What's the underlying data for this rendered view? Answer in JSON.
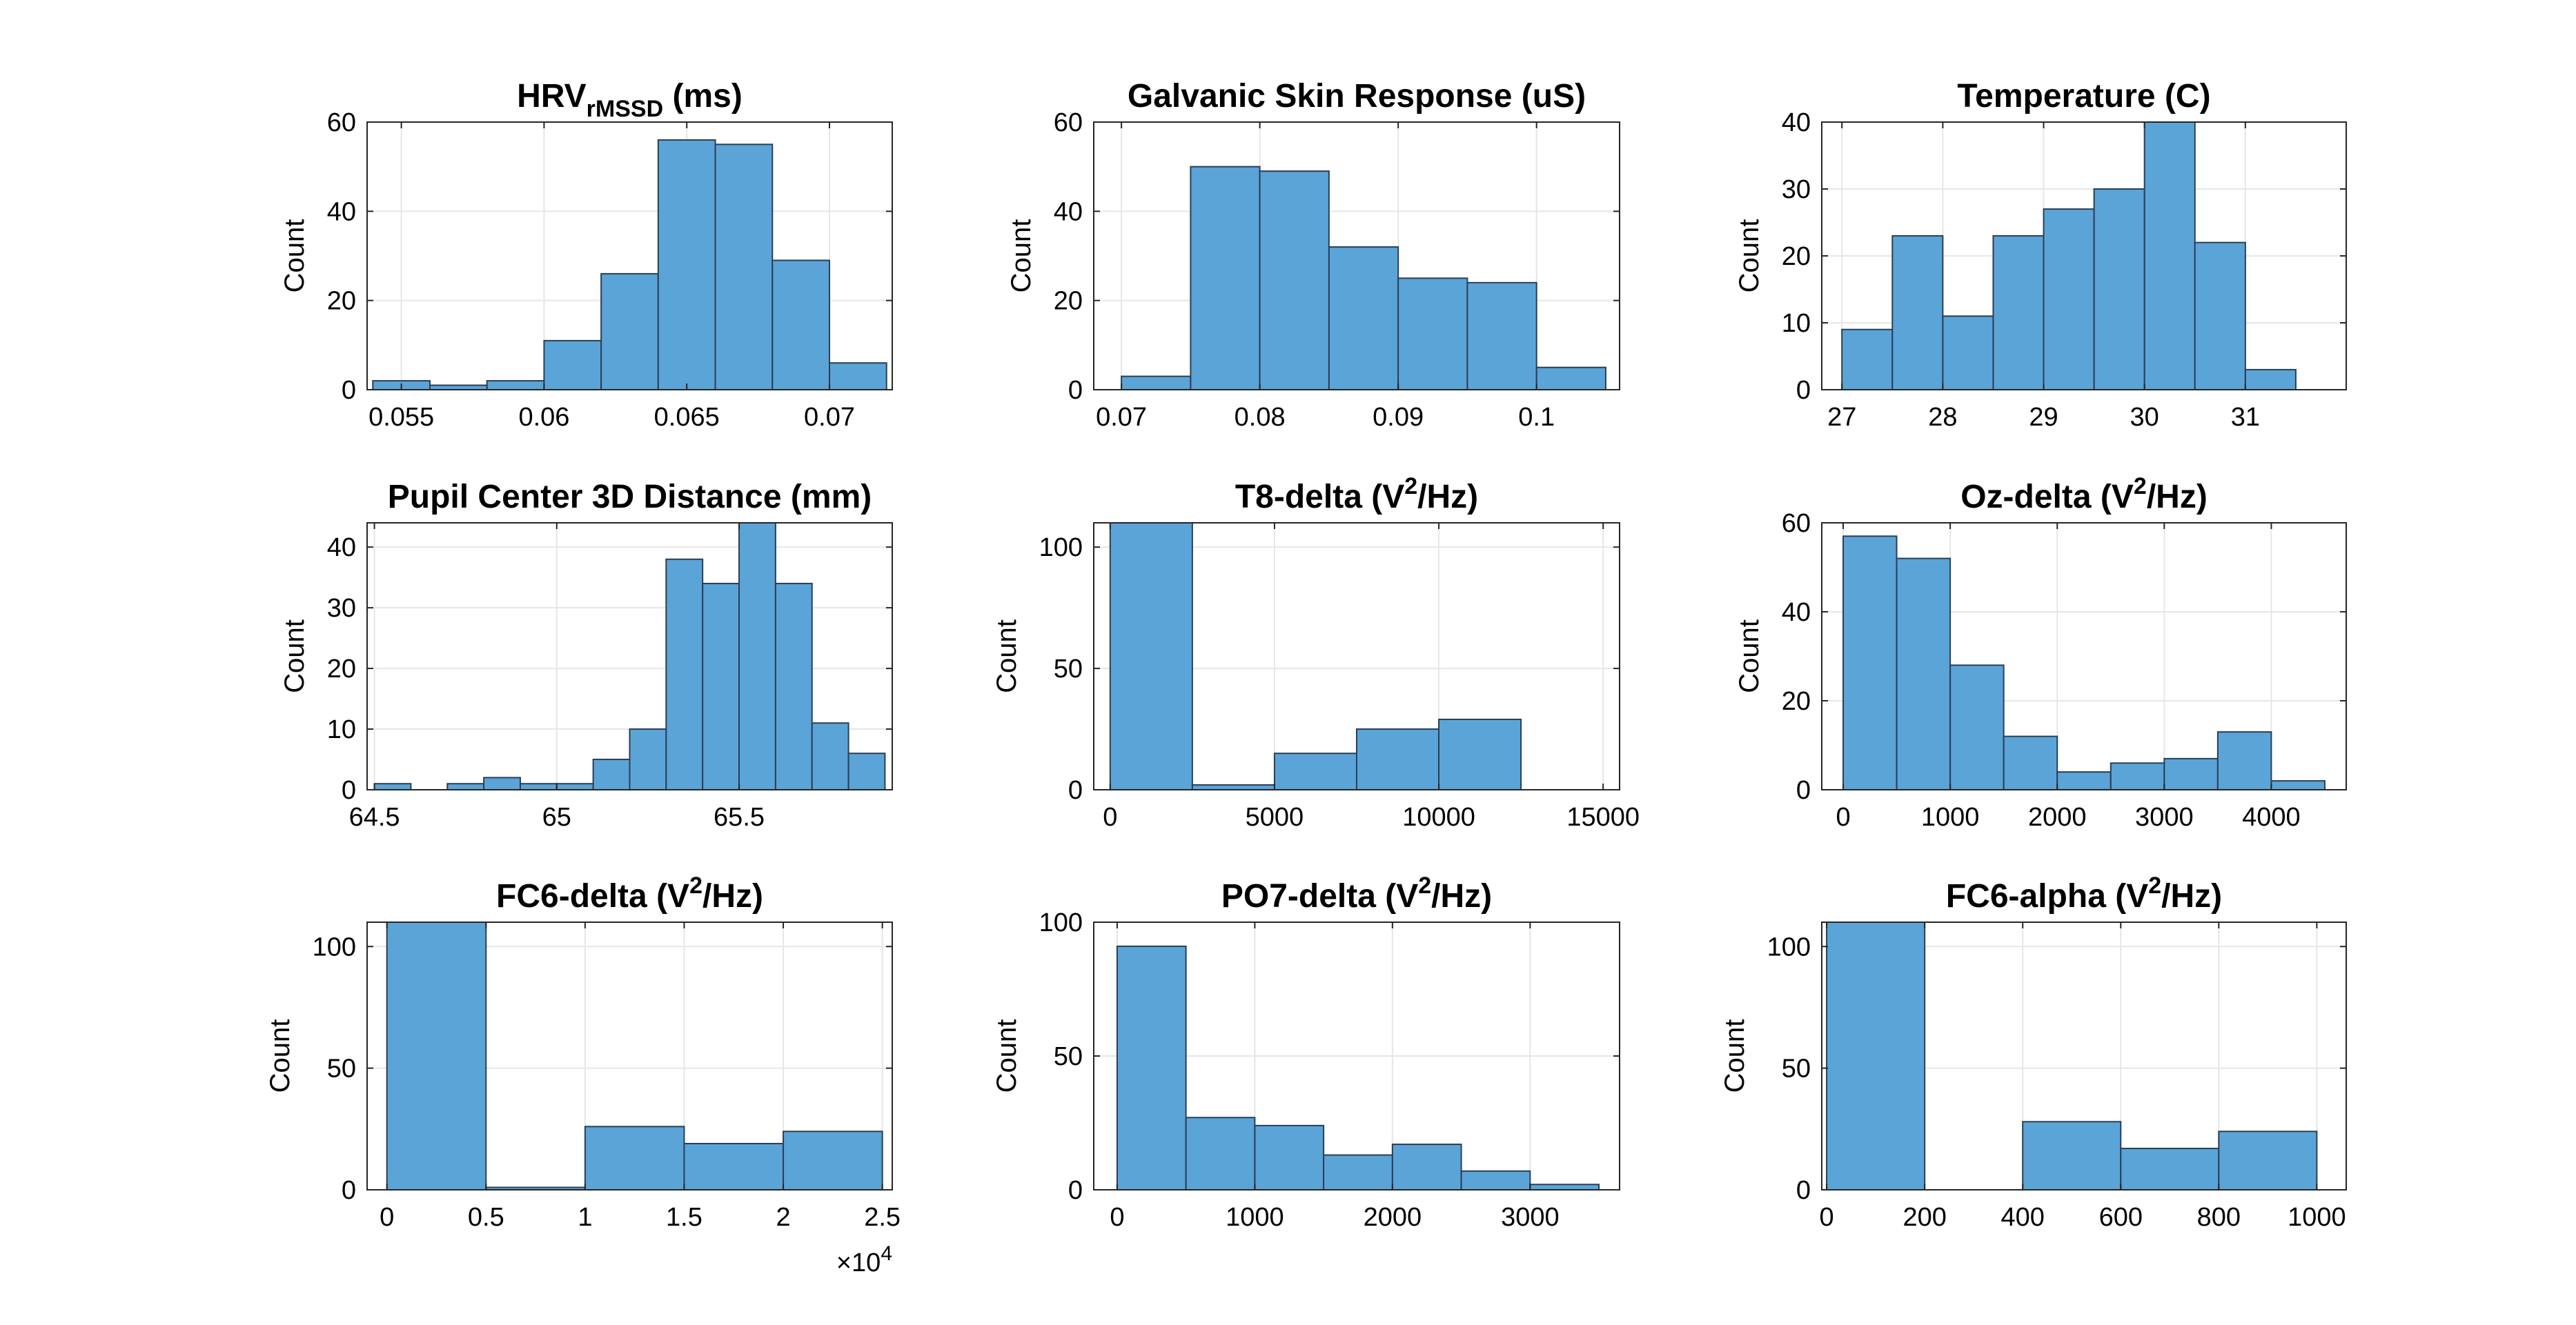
{
  "figure": {
    "bar_color": "#5ba4d8",
    "edge_color": "#2a3f55",
    "grid_color": "#e6e6e6",
    "axes_color": "#262626"
  },
  "chart_data": [
    {
      "type": "bar",
      "title": "HRV",
      "title_sub": "rMSSD",
      "title_suffix": " (ms)",
      "ylabel": "Count",
      "xlim": [
        0.0538,
        0.0722
      ],
      "ylim": [
        0,
        60
      ],
      "xticks": [
        0.055,
        0.06,
        0.065,
        0.07
      ],
      "xtick_labels": [
        "0.055",
        "0.06",
        "0.065",
        "0.07"
      ],
      "yticks": [
        0,
        20,
        40,
        60
      ],
      "ytick_labels": [
        "0",
        "20",
        "40",
        "60"
      ],
      "edges": [
        0.054,
        0.056,
        0.058,
        0.06,
        0.062,
        0.064,
        0.066,
        0.068,
        0.07,
        0.072
      ],
      "values": [
        2,
        1,
        2,
        11,
        26,
        56,
        55,
        29,
        6
      ],
      "grid": true
    },
    {
      "type": "bar",
      "title": "Galvanic Skin Response (uS)",
      "ylabel": "Count",
      "xlim": [
        0.068,
        0.106
      ],
      "ylim": [
        0,
        60
      ],
      "xticks": [
        0.07,
        0.08,
        0.09,
        0.1
      ],
      "xtick_labels": [
        "0.07",
        "0.08",
        "0.09",
        "0.1"
      ],
      "yticks": [
        0,
        20,
        40,
        60
      ],
      "ytick_labels": [
        "0",
        "20",
        "40",
        "60"
      ],
      "edges": [
        0.07,
        0.075,
        0.08,
        0.085,
        0.09,
        0.095,
        0.1,
        0.105
      ],
      "values": [
        3,
        50,
        49,
        32,
        25,
        24,
        5
      ],
      "grid": true
    },
    {
      "type": "bar",
      "title": "Temperature (C)",
      "ylabel": "Count",
      "xlim": [
        26.8,
        32.0
      ],
      "ylim": [
        0,
        40
      ],
      "xticks": [
        27,
        28,
        29,
        30,
        31
      ],
      "xtick_labels": [
        "27",
        "28",
        "29",
        "30",
        "31"
      ],
      "yticks": [
        0,
        10,
        20,
        30,
        40
      ],
      "ytick_labels": [
        "0",
        "10",
        "20",
        "30",
        "40"
      ],
      "edges": [
        27.0,
        27.5,
        28.0,
        28.5,
        29.0,
        29.5,
        30.0,
        30.5,
        31.0,
        31.5
      ],
      "values": [
        9,
        23,
        11,
        23,
        27,
        30,
        40,
        22,
        3
      ],
      "grid": true
    },
    {
      "type": "bar",
      "title": "Pupil Center 3D Distance (mm)",
      "ylabel": "Count",
      "xlim": [
        64.48,
        65.92
      ],
      "ylim": [
        0,
        44
      ],
      "xticks": [
        64.5,
        65,
        65.5
      ],
      "xtick_labels": [
        "64.5",
        "65",
        "65.5"
      ],
      "yticks": [
        0,
        10,
        20,
        30,
        40
      ],
      "ytick_labels": [
        "0",
        "10",
        "20",
        "30",
        "40"
      ],
      "edges": [
        64.5,
        64.6,
        64.7,
        64.8,
        64.9,
        65.0,
        65.1,
        65.2,
        65.3,
        65.4,
        65.5,
        65.6,
        65.7,
        65.8,
        65.9
      ],
      "values": [
        1,
        0,
        1,
        2,
        1,
        1,
        5,
        10,
        38,
        34,
        44,
        34,
        11,
        6
      ],
      "grid": true
    },
    {
      "type": "bar",
      "title": "T8-delta (V",
      "title_sup": "2",
      "title_suffix": "/Hz)",
      "ylabel": "Count",
      "xlim": [
        -500,
        15500
      ],
      "ylim": [
        0,
        110
      ],
      "xticks": [
        0,
        5000,
        10000,
        15000
      ],
      "xtick_labels": [
        "0",
        "5000",
        "10000",
        "15000"
      ],
      "yticks": [
        0,
        50,
        100
      ],
      "ytick_labels": [
        "0",
        "50",
        "100"
      ],
      "edges": [
        0,
        2500,
        5000,
        7500,
        10000,
        12500,
        15000
      ],
      "values": [
        110,
        2,
        15,
        25,
        29,
        0
      ],
      "clip_top": true,
      "grid": true
    },
    {
      "type": "bar",
      "title": "Oz-delta (V",
      "title_sup": "2",
      "title_suffix": "/Hz)",
      "ylabel": "Count",
      "xlim": [
        -200,
        4700
      ],
      "ylim": [
        0,
        60
      ],
      "xticks": [
        0,
        1000,
        2000,
        3000,
        4000
      ],
      "xtick_labels": [
        "0",
        "1000",
        "2000",
        "3000",
        "4000"
      ],
      "yticks": [
        0,
        20,
        40,
        60
      ],
      "ytick_labels": [
        "0",
        "20",
        "40",
        "60"
      ],
      "edges": [
        0,
        500,
        1000,
        1500,
        2000,
        2500,
        3000,
        3500,
        4000,
        4500
      ],
      "values": [
        57,
        52,
        28,
        12,
        4,
        6,
        7,
        13,
        2
      ],
      "grid": true
    },
    {
      "type": "bar",
      "title": "FC6-delta (V",
      "title_sup": "2",
      "title_suffix": "/Hz)",
      "ylabel": "Count",
      "xlim": [
        -0.1,
        2.55
      ],
      "ylim": [
        0,
        110
      ],
      "xticks": [
        0,
        0.5,
        1,
        1.5,
        2,
        2.5
      ],
      "xtick_labels": [
        "0",
        "0.5",
        "1",
        "1.5",
        "2",
        "2.5"
      ],
      "yticks": [
        0,
        50,
        100
      ],
      "ytick_labels": [
        "0",
        "50",
        "100"
      ],
      "x_exponent_base": "×10",
      "x_exponent_power": "4",
      "edges": [
        0,
        0.5,
        1.0,
        1.5,
        2.0,
        2.5
      ],
      "values": [
        110,
        1,
        26,
        19,
        24
      ],
      "grid": true
    },
    {
      "type": "bar",
      "title": "PO7-delta (V",
      "title_sup": "2",
      "title_suffix": "/Hz)",
      "ylabel": "Count",
      "xlim": [
        -170,
        3650
      ],
      "ylim": [
        0,
        100
      ],
      "xticks": [
        0,
        1000,
        2000,
        3000
      ],
      "xtick_labels": [
        "0",
        "1000",
        "2000",
        "3000"
      ],
      "yticks": [
        0,
        50,
        100
      ],
      "ytick_labels": [
        "0",
        "50",
        "100"
      ],
      "edges": [
        0,
        500,
        1000,
        1500,
        2000,
        2500,
        3000,
        3500
      ],
      "values": [
        91,
        27,
        24,
        13,
        17,
        7,
        2
      ],
      "grid": true
    },
    {
      "type": "bar",
      "title": "FC6-alpha (V",
      "title_sup": "2",
      "title_suffix": "/Hz)",
      "ylabel": "Count",
      "xlim": [
        -10,
        1060
      ],
      "ylim": [
        0,
        110
      ],
      "xticks": [
        0,
        200,
        400,
        600,
        800,
        1000
      ],
      "xtick_labels": [
        "0",
        "200",
        "400",
        "600",
        "800",
        "1000"
      ],
      "yticks": [
        0,
        50,
        100
      ],
      "ytick_labels": [
        "0",
        "50",
        "100"
      ],
      "edges": [
        0,
        200,
        400,
        600,
        800,
        1000
      ],
      "values": [
        110,
        0,
        28,
        17,
        24
      ],
      "grid": true
    }
  ]
}
